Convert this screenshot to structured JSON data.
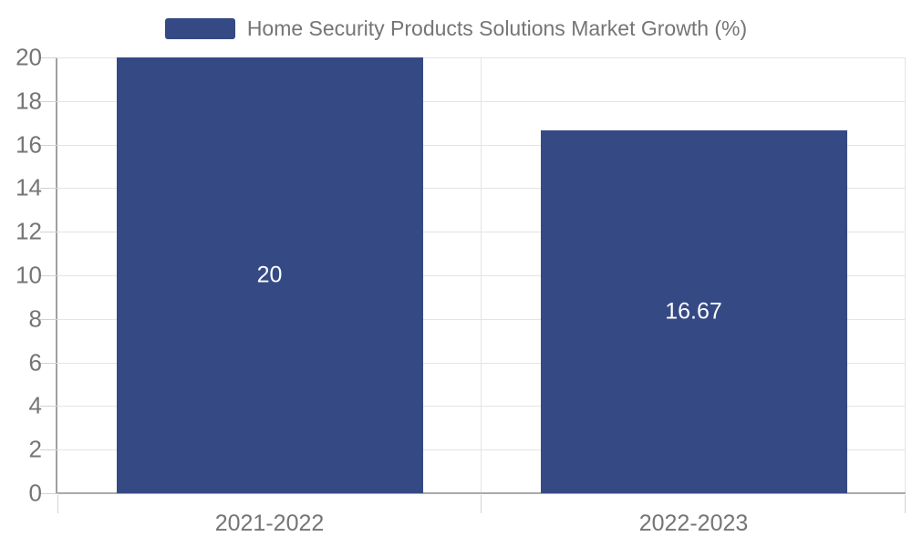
{
  "chart_data": {
    "type": "bar",
    "title": "Home Security Products Solutions Market Growth (%)",
    "categories": [
      "2021-2022",
      "2022-2023"
    ],
    "values": [
      20,
      16.67
    ],
    "value_labels": [
      "20",
      "16.67"
    ],
    "ylim": [
      0,
      20
    ],
    "y_ticks": [
      0,
      2,
      4,
      6,
      8,
      10,
      12,
      14,
      16,
      18,
      20
    ],
    "grid": true,
    "legend_position": "top-center",
    "value_label_position": "center-of-bar",
    "colors": {
      "bar": "#354A85",
      "grid_line": "#e4e4e4",
      "tick_line": "#d2d2d2",
      "axis_line": "#a0a0a0",
      "label_text": "#757575",
      "value_text": "#ffffff",
      "background": "#ffffff"
    }
  }
}
